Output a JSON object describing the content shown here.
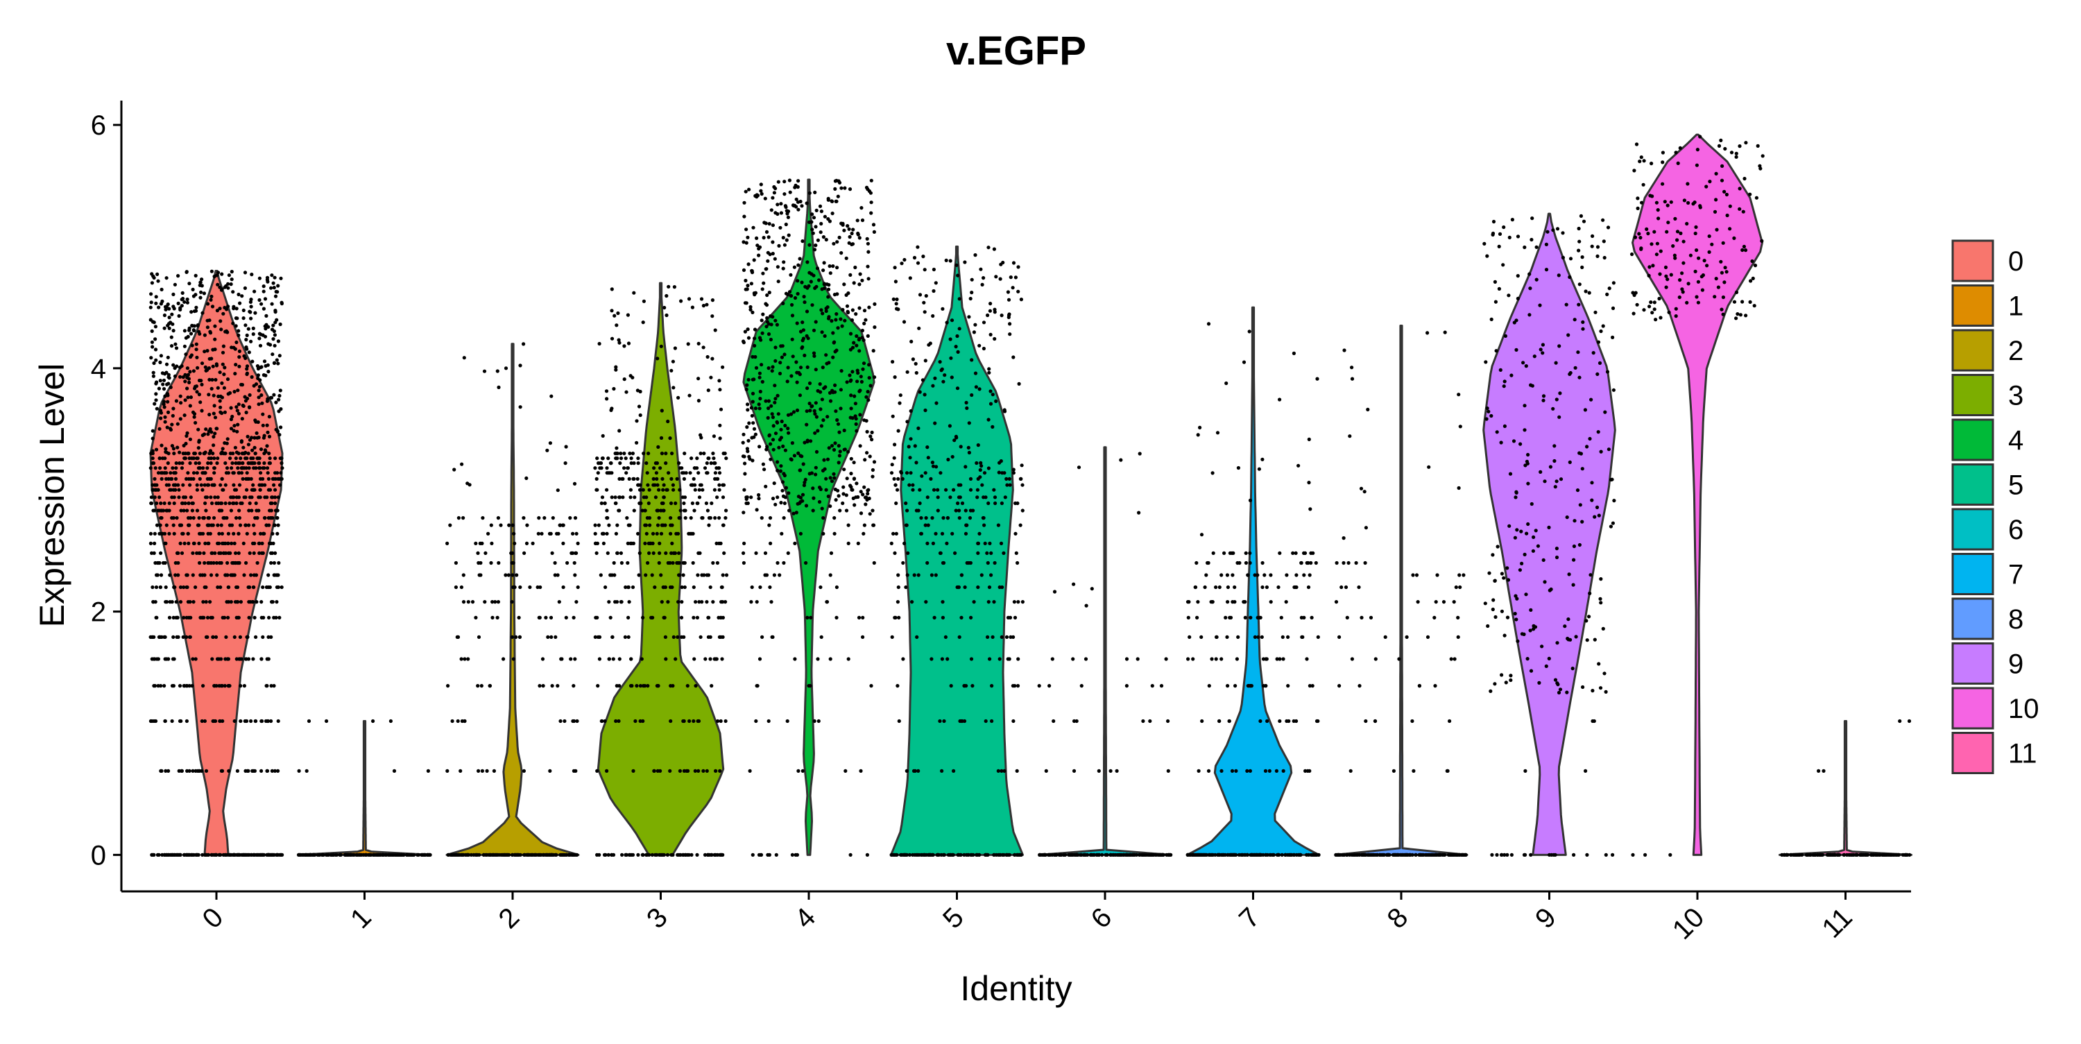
{
  "chart_data": {
    "type": "violin",
    "title": "v.EGFP",
    "xlabel": "Identity",
    "ylabel": "Expression Level",
    "ylim": [
      -0.3,
      6.2
    ],
    "y_ticks": [
      0,
      2,
      4,
      6
    ],
    "categories": [
      "0",
      "1",
      "2",
      "3",
      "4",
      "5",
      "6",
      "7",
      "8",
      "9",
      "10",
      "11"
    ],
    "legend": {
      "position": "right",
      "entries": [
        "0",
        "1",
        "2",
        "3",
        "4",
        "5",
        "6",
        "7",
        "8",
        "9",
        "10",
        "11"
      ]
    },
    "grid": false,
    "colors": {
      "0": "#F8766D",
      "1": "#DE8C00",
      "2": "#B79F00",
      "3": "#7CAE00",
      "4": "#00BA38",
      "5": "#00C08B",
      "6": "#00BFC4",
      "7": "#00B4F0",
      "8": "#619CFF",
      "9": "#C77CFF",
      "10": "#F564E3",
      "11": "#FF64B0"
    },
    "series": [
      {
        "name": "0",
        "max": 4.8,
        "density": [
          [
            0,
            0.18
          ],
          [
            0.15,
            0.16
          ],
          [
            0.35,
            0.1
          ],
          [
            0.55,
            0.15
          ],
          [
            0.8,
            0.25
          ],
          [
            1.1,
            0.3
          ],
          [
            1.5,
            0.37
          ],
          [
            2.0,
            0.55
          ],
          [
            2.5,
            0.78
          ],
          [
            3.0,
            0.98
          ],
          [
            3.3,
            1.0
          ],
          [
            3.7,
            0.85
          ],
          [
            4.0,
            0.55
          ],
          [
            4.3,
            0.3
          ],
          [
            4.6,
            0.12
          ],
          [
            4.8,
            0.0
          ]
        ],
        "points": {
          "base_count": 130,
          "levels": [
            0.69,
            1.1,
            1.39,
            1.61,
            1.79,
            1.95,
            2.08,
            2.2,
            2.3,
            2.4,
            2.48,
            2.56,
            2.64,
            2.71,
            2.77,
            2.83,
            2.89,
            2.94,
            3.0,
            3.04,
            3.09,
            3.14,
            3.18,
            3.22,
            3.26,
            3.3
          ],
          "level_count": 32,
          "scatter_count": 520,
          "scatter_min": 3.3,
          "scatter_max": 4.8
        }
      },
      {
        "name": "1",
        "max": 1.1,
        "density": [
          [
            0,
            1.0
          ],
          [
            0.03,
            0.02
          ],
          [
            1.1,
            0.0
          ]
        ],
        "points": {
          "base_count": 150,
          "levels": [
            0.69,
            1.1
          ],
          "level_count": 4,
          "scatter_count": 0,
          "scatter_min": 0,
          "scatter_max": 0
        }
      },
      {
        "name": "2",
        "max": 4.2,
        "density": [
          [
            0,
            1.0
          ],
          [
            0.08,
            0.5
          ],
          [
            0.3,
            0.05
          ],
          [
            0.55,
            0.12
          ],
          [
            0.7,
            0.14
          ],
          [
            0.85,
            0.08
          ],
          [
            1.2,
            0.04
          ],
          [
            2.0,
            0.025
          ],
          [
            3.0,
            0.02
          ],
          [
            4.2,
            0.0
          ]
        ],
        "points": {
          "base_count": 140,
          "levels": [
            0.69,
            1.1,
            1.39,
            1.61,
            1.79,
            1.95,
            2.08,
            2.2,
            2.3,
            2.4,
            2.48,
            2.56,
            2.64,
            2.71,
            2.77
          ],
          "level_count": 10,
          "scatter_count": 20,
          "scatter_min": 2.9,
          "scatter_max": 4.2
        }
      },
      {
        "name": "3",
        "max": 4.7,
        "density": [
          [
            0,
            0.18
          ],
          [
            0.2,
            0.4
          ],
          [
            0.45,
            0.75
          ],
          [
            0.7,
            0.95
          ],
          [
            1.0,
            0.9
          ],
          [
            1.3,
            0.7
          ],
          [
            1.6,
            0.3
          ],
          [
            2.0,
            0.27
          ],
          [
            2.5,
            0.32
          ],
          [
            3.0,
            0.3
          ],
          [
            3.5,
            0.22
          ],
          [
            4.0,
            0.1
          ],
          [
            4.3,
            0.04
          ],
          [
            4.7,
            0.0
          ]
        ],
        "points": {
          "base_count": 60,
          "levels": [
            0.69,
            1.1,
            1.39,
            1.61,
            1.79,
            1.95,
            2.08,
            2.2,
            2.3,
            2.4,
            2.48,
            2.56,
            2.64,
            2.71,
            2.77,
            2.83,
            2.89,
            2.94,
            3.0,
            3.04,
            3.09,
            3.14,
            3.18,
            3.22,
            3.26,
            3.3
          ],
          "level_count": 18,
          "scatter_count": 80,
          "scatter_min": 3.3,
          "scatter_max": 4.7
        }
      },
      {
        "name": "4",
        "max": 5.55,
        "density": [
          [
            0,
            0.02
          ],
          [
            0.3,
            0.05
          ],
          [
            0.5,
            0.02
          ],
          [
            0.8,
            0.08
          ],
          [
            1.5,
            0.04
          ],
          [
            2.0,
            0.06
          ],
          [
            2.5,
            0.14
          ],
          [
            3.0,
            0.35
          ],
          [
            3.5,
            0.75
          ],
          [
            3.9,
            1.0
          ],
          [
            4.3,
            0.8
          ],
          [
            4.6,
            0.3
          ],
          [
            4.9,
            0.08
          ],
          [
            5.3,
            0.02
          ],
          [
            5.55,
            0.0
          ]
        ],
        "points": {
          "base_count": 12,
          "levels": [
            0.69,
            1.1,
            1.39,
            1.61,
            1.79,
            1.95,
            2.08,
            2.2,
            2.3,
            2.4,
            2.48,
            2.56,
            2.64,
            2.71,
            2.77,
            2.83,
            2.89,
            2.94,
            3.0
          ],
          "level_count": 5,
          "scatter_count": 640,
          "scatter_min": 2.8,
          "scatter_max": 5.55
        }
      },
      {
        "name": "5",
        "max": 5.0,
        "density": [
          [
            0,
            1.0
          ],
          [
            0.2,
            0.85
          ],
          [
            0.6,
            0.75
          ],
          [
            1.0,
            0.72
          ],
          [
            1.5,
            0.7
          ],
          [
            2.0,
            0.72
          ],
          [
            2.5,
            0.78
          ],
          [
            3.0,
            0.85
          ],
          [
            3.4,
            0.82
          ],
          [
            3.8,
            0.6
          ],
          [
            4.1,
            0.3
          ],
          [
            4.5,
            0.08
          ],
          [
            5.0,
            0.0
          ]
        ],
        "points": {
          "base_count": 100,
          "levels": [
            0.69,
            1.1,
            1.39,
            1.61,
            1.79,
            1.95,
            2.08,
            2.2,
            2.3,
            2.4,
            2.48,
            2.56,
            2.64,
            2.71,
            2.77,
            2.83,
            2.89,
            2.94,
            3.0,
            3.04,
            3.09,
            3.14
          ],
          "level_count": 10,
          "scatter_count": 170,
          "scatter_min": 3.1,
          "scatter_max": 5.0
        }
      },
      {
        "name": "6",
        "max": 3.35,
        "density": [
          [
            0,
            1.0
          ],
          [
            0.03,
            0.02
          ],
          [
            3.35,
            0.0
          ]
        ],
        "points": {
          "base_count": 150,
          "levels": [
            0.69,
            1.1,
            1.39,
            1.61
          ],
          "level_count": 6,
          "scatter_count": 8,
          "scatter_min": 2.0,
          "scatter_max": 3.35
        }
      },
      {
        "name": "7",
        "max": 4.5,
        "density": [
          [
            0,
            1.0
          ],
          [
            0.1,
            0.65
          ],
          [
            0.3,
            0.3
          ],
          [
            0.5,
            0.45
          ],
          [
            0.7,
            0.6
          ],
          [
            0.9,
            0.4
          ],
          [
            1.2,
            0.18
          ],
          [
            1.6,
            0.1
          ],
          [
            2.0,
            0.08
          ],
          [
            2.5,
            0.05
          ],
          [
            3.0,
            0.03
          ],
          [
            4.5,
            0.0
          ]
        ],
        "points": {
          "base_count": 150,
          "levels": [
            0.69,
            1.1,
            1.39,
            1.61,
            1.79,
            1.95,
            2.08,
            2.2,
            2.3,
            2.4,
            2.48
          ],
          "level_count": 14,
          "scatter_count": 20,
          "scatter_min": 2.5,
          "scatter_max": 4.5
        }
      },
      {
        "name": "8",
        "max": 4.35,
        "density": [
          [
            0,
            1.0
          ],
          [
            0.03,
            0.02
          ],
          [
            4.35,
            0.0
          ]
        ],
        "points": {
          "base_count": 150,
          "levels": [
            0.69,
            1.1,
            1.39,
            1.61,
            1.79,
            1.95,
            2.08,
            2.2,
            2.3,
            2.4
          ],
          "level_count": 5,
          "scatter_count": 15,
          "scatter_min": 2.5,
          "scatter_max": 4.35
        }
      },
      {
        "name": "9",
        "max": 5.27,
        "density": [
          [
            0,
            0.25
          ],
          [
            0.3,
            0.18
          ],
          [
            0.7,
            0.14
          ],
          [
            1.2,
            0.3
          ],
          [
            1.8,
            0.5
          ],
          [
            2.5,
            0.72
          ],
          [
            3.0,
            0.9
          ],
          [
            3.5,
            1.0
          ],
          [
            4.0,
            0.88
          ],
          [
            4.4,
            0.6
          ],
          [
            4.8,
            0.28
          ],
          [
            5.1,
            0.08
          ],
          [
            5.27,
            0.0
          ]
        ],
        "points": {
          "base_count": 18,
          "levels": [
            0.69,
            1.1
          ],
          "level_count": 2,
          "scatter_count": 260,
          "scatter_min": 1.3,
          "scatter_max": 5.27
        }
      },
      {
        "name": "10",
        "max": 5.92,
        "density": [
          [
            0,
            0.06
          ],
          [
            0.2,
            0.04
          ],
          [
            1.0,
            0.03
          ],
          [
            2.0,
            0.02
          ],
          [
            3.0,
            0.05
          ],
          [
            3.6,
            0.09
          ],
          [
            4.0,
            0.14
          ],
          [
            4.5,
            0.45
          ],
          [
            5.0,
            1.0
          ],
          [
            5.4,
            0.8
          ],
          [
            5.7,
            0.45
          ],
          [
            5.92,
            0.0
          ]
        ],
        "points": {
          "base_count": 3,
          "levels": [],
          "level_count": 0,
          "scatter_count": 170,
          "scatter_min": 4.4,
          "scatter_max": 5.92
        }
      },
      {
        "name": "11",
        "max": 1.1,
        "density": [
          [
            0,
            1.0
          ],
          [
            0.03,
            0.02
          ],
          [
            1.1,
            0.0
          ]
        ],
        "points": {
          "base_count": 130,
          "levels": [
            0.69,
            1.1
          ],
          "level_count": 2,
          "scatter_count": 0,
          "scatter_min": 0,
          "scatter_max": 0
        }
      }
    ]
  }
}
